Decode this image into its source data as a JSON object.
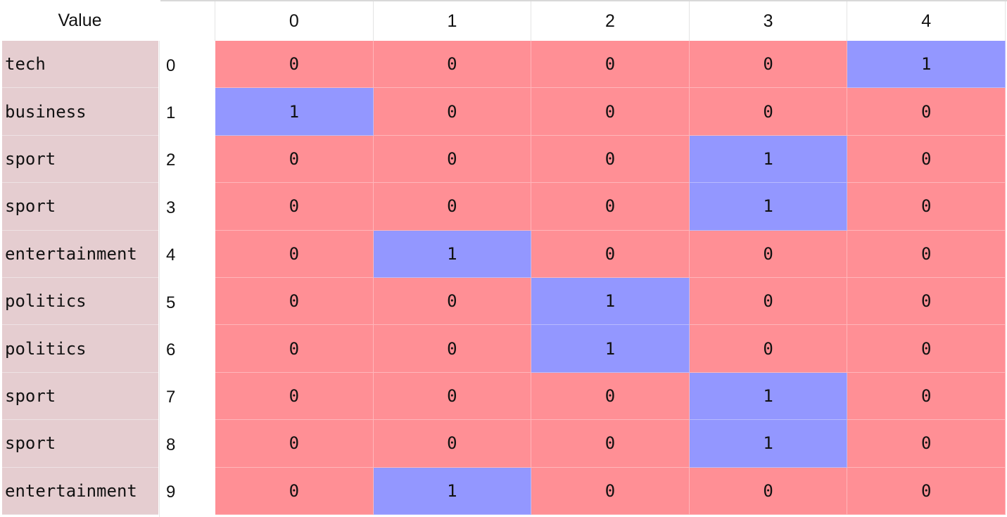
{
  "series_panel": {
    "header": "Value",
    "values": [
      "tech",
      "business",
      "sport",
      "sport",
      "entertainment",
      "politics",
      "politics",
      "sport",
      "sport",
      "entertainment"
    ]
  },
  "dataframe_panel": {
    "columns": [
      "0",
      "1",
      "2",
      "3",
      "4"
    ],
    "index": [
      "0",
      "1",
      "2",
      "3",
      "4",
      "5",
      "6",
      "7",
      "8",
      "9"
    ],
    "rows": [
      [
        "0",
        "0",
        "0",
        "0",
        "1"
      ],
      [
        "1",
        "0",
        "0",
        "0",
        "0"
      ],
      [
        "0",
        "0",
        "0",
        "1",
        "0"
      ],
      [
        "0",
        "0",
        "0",
        "1",
        "0"
      ],
      [
        "0",
        "1",
        "0",
        "0",
        "0"
      ],
      [
        "0",
        "0",
        "1",
        "0",
        "0"
      ],
      [
        "0",
        "0",
        "1",
        "0",
        "0"
      ],
      [
        "0",
        "0",
        "0",
        "1",
        "0"
      ],
      [
        "0",
        "0",
        "0",
        "1",
        "0"
      ],
      [
        "0",
        "1",
        "0",
        "0",
        "0"
      ]
    ]
  },
  "colors": {
    "zero_cell": "#ff8f95",
    "one_cell": "#9397ff",
    "value_cell": "#e5cdd0"
  }
}
